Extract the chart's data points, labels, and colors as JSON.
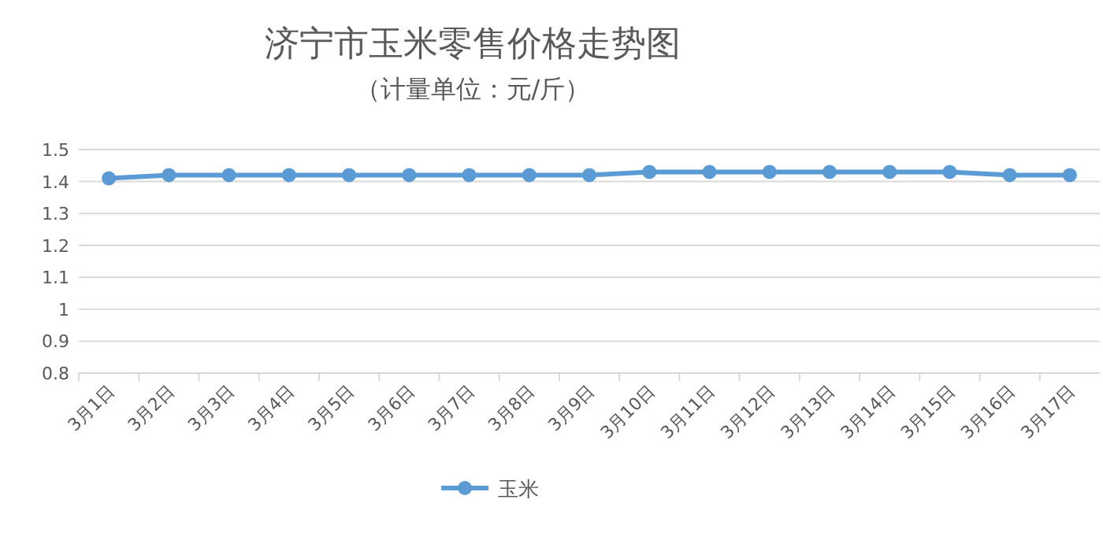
{
  "chart_data": {
    "type": "line",
    "title": "济宁市玉米零售价格走势图",
    "subtitle": "（计量单位：元/斤）",
    "categories": [
      "3月1日",
      "3月2日",
      "3月3日",
      "3月4日",
      "3月5日",
      "3月6日",
      "3月7日",
      "3月8日",
      "3月9日",
      "3月10日",
      "3月11日",
      "3月12日",
      "3月13日",
      "3月14日",
      "3月15日",
      "3月16日",
      "3月17日"
    ],
    "series": [
      {
        "name": "玉米",
        "color": "#5b9bd5",
        "values": [
          1.41,
          1.42,
          1.42,
          1.42,
          1.42,
          1.42,
          1.42,
          1.42,
          1.42,
          1.43,
          1.43,
          1.43,
          1.43,
          1.43,
          1.43,
          1.42,
          1.42
        ]
      }
    ],
    "ylim": [
      0.8,
      1.5
    ],
    "yticks": [
      0.8,
      0.9,
      1,
      1.1,
      1.2,
      1.3,
      1.4,
      1.5
    ],
    "grid": "y",
    "legend": "bottom",
    "marker": "circle",
    "line_style": "solid"
  }
}
